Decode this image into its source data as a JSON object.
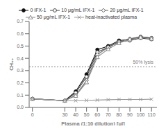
{
  "chart_data": {
    "type": "line",
    "xlabel": "Plasma (1:10 dilution) [μl]",
    "ylabel": "CH₅₀",
    "x": [
      0,
      30,
      40,
      50,
      60,
      70,
      80,
      90,
      100,
      110
    ],
    "xlim": [
      -3,
      115
    ],
    "xticks": [
      0,
      30,
      40,
      50,
      60,
      70,
      80,
      90,
      100,
      110
    ],
    "ylim": [
      0.0,
      0.7
    ],
    "yticks": [
      {
        "value": 0.0,
        "label": "0.0"
      },
      0.1,
      0.2,
      0.3,
      0.4,
      0.5,
      0.6,
      0.7
    ],
    "grid": false,
    "legend": "top",
    "annotations": [
      {
        "type": "hline",
        "y": 0.33,
        "text": "50% lysis"
      }
    ],
    "series": [
      {
        "name": "0 IFX-1",
        "color": "#111111",
        "marker": "filled-circle",
        "values": [
          0.07,
          0.055,
          0.13,
          0.27,
          0.47,
          0.5,
          0.545,
          0.555,
          0.575,
          0.565
        ]
      },
      {
        "name": "10 μg/mL IFX-1",
        "color": "#444444",
        "marker": "open-circle",
        "values": [
          0.07,
          0.055,
          0.12,
          0.25,
          0.45,
          0.49,
          0.535,
          0.545,
          0.565,
          0.555
        ]
      },
      {
        "name": "20 μg/mL IFX-1",
        "color": "#666666",
        "marker": "open-diamond",
        "values": [
          0.07,
          0.055,
          0.1,
          0.22,
          0.43,
          0.49,
          0.535,
          0.56,
          0.575,
          0.565
        ]
      },
      {
        "name": "50 μg/mL IFX-1",
        "color": "#888888",
        "marker": "open-triangle",
        "values": [
          0.07,
          0.055,
          0.095,
          0.205,
          0.41,
          0.475,
          0.525,
          0.555,
          0.57,
          0.56
        ]
      },
      {
        "name": "heat-inactivated plasma",
        "color": "#999999",
        "marker": "x",
        "values": [
          0.07,
          0.055,
          0.055,
          0.058,
          0.06,
          0.063,
          0.065,
          0.065,
          0.065,
          0.067
        ]
      }
    ]
  }
}
